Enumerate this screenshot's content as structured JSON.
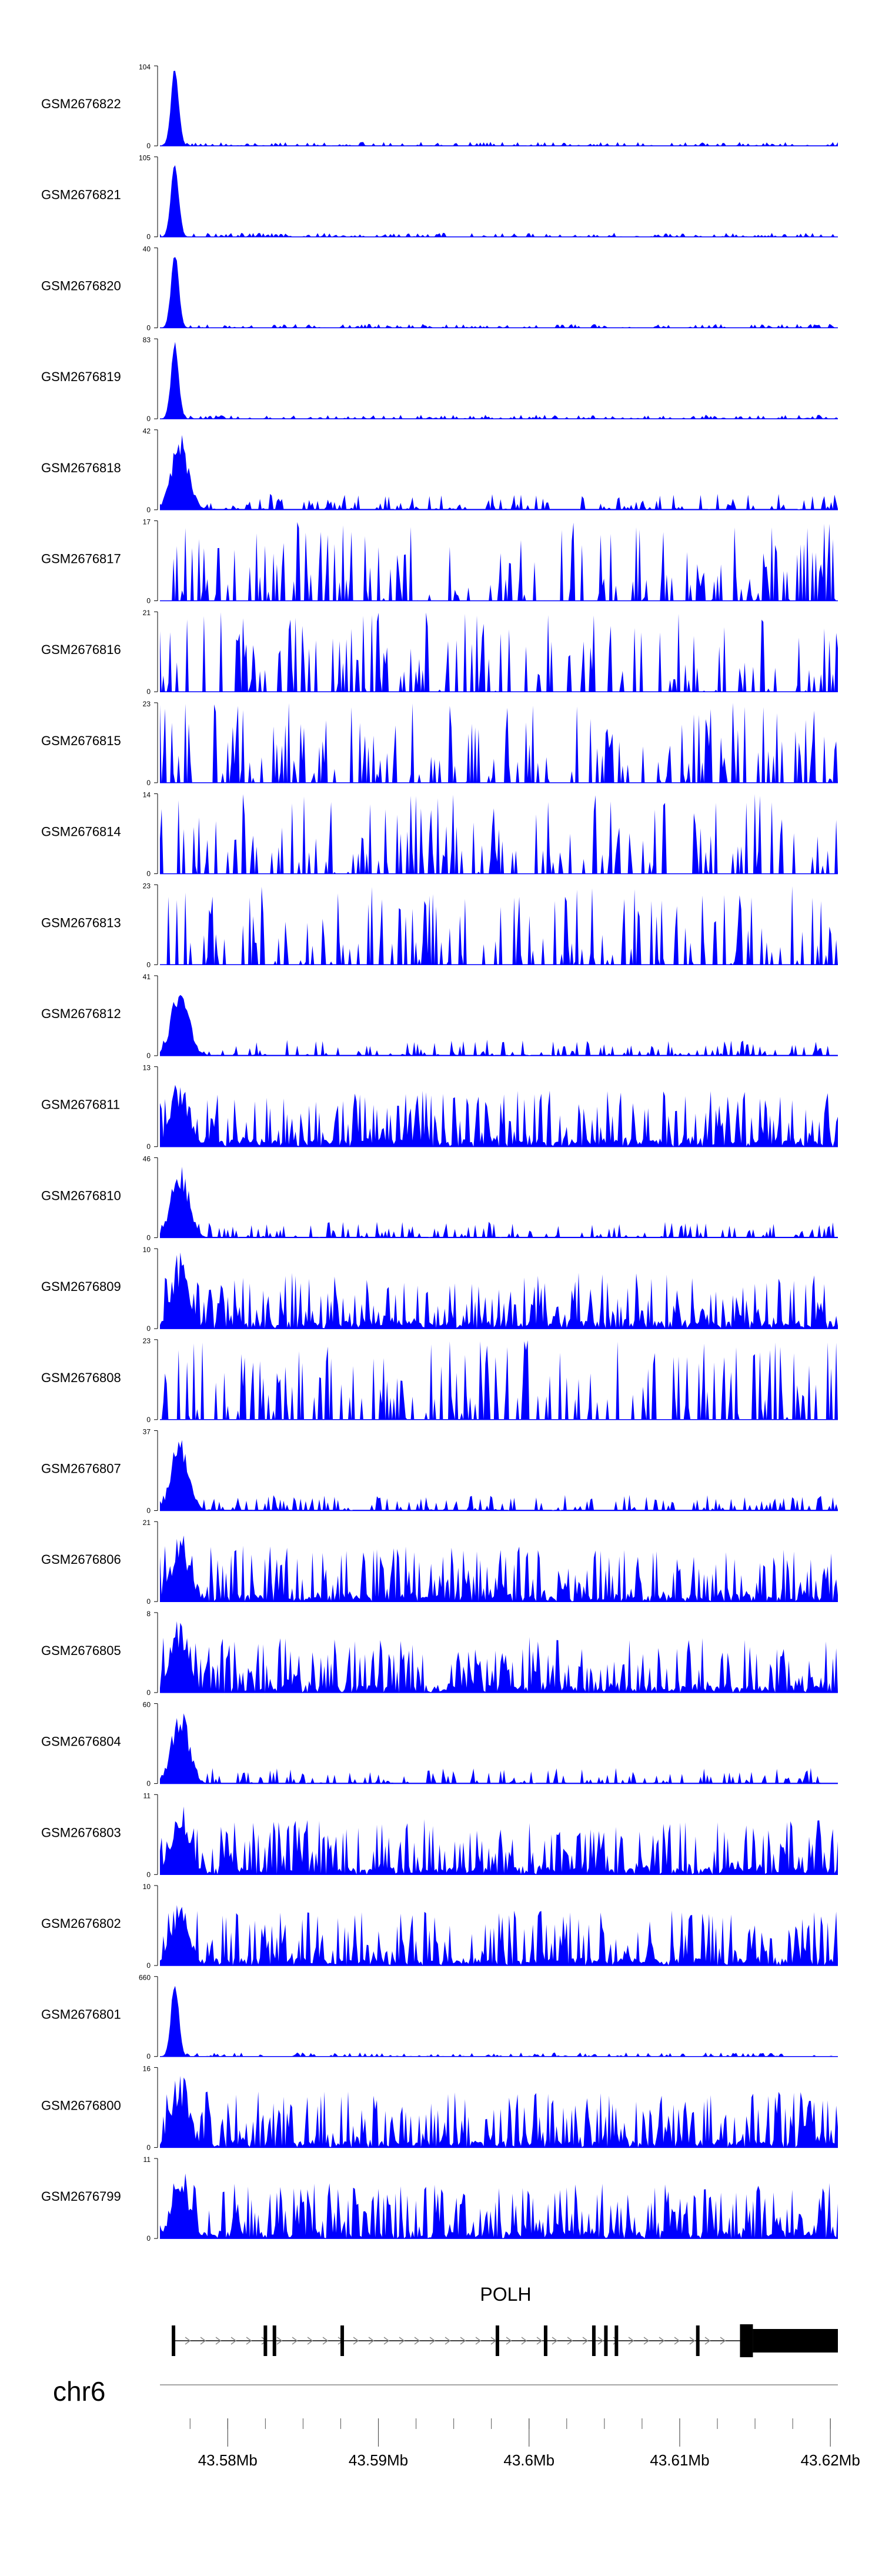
{
  "chart_data": {
    "type": "area",
    "title": "",
    "xlabel": "",
    "colors": {
      "signal": "#0000ff",
      "gene": "#000000",
      "axis": "#000000",
      "baseline": "#888888"
    },
    "region": {
      "chromosome": "chr6",
      "start_mb": 43.5755,
      "end_mb": 43.6205
    },
    "tracks": [
      {
        "name": "GSM2676822",
        "ymax": "104",
        "ymin": "0",
        "max": 104,
        "profile": "early"
      },
      {
        "name": "GSM2676821",
        "ymax": "105",
        "ymin": "0",
        "max": 105,
        "profile": "early"
      },
      {
        "name": "GSM2676820",
        "ymax": "40",
        "ymin": "0",
        "max": 40,
        "profile": "early"
      },
      {
        "name": "GSM2676819",
        "ymax": "83",
        "ymin": "0",
        "max": 83,
        "profile": "early"
      },
      {
        "name": "GSM2676818",
        "ymax": "42",
        "ymin": "0",
        "max": 42,
        "profile": "earlymid"
      },
      {
        "name": "GSM2676817",
        "ymax": "17",
        "ymin": "0",
        "max": 17,
        "profile": "spiky"
      },
      {
        "name": "GSM2676816",
        "ymax": "21",
        "ymin": "0",
        "max": 21,
        "profile": "spiky"
      },
      {
        "name": "GSM2676815",
        "ymax": "23",
        "ymin": "0",
        "max": 23,
        "profile": "spiky"
      },
      {
        "name": "GSM2676814",
        "ymax": "14",
        "ymin": "0",
        "max": 14,
        "profile": "spiky"
      },
      {
        "name": "GSM2676813",
        "ymax": "23",
        "ymin": "0",
        "max": 23,
        "profile": "spiky"
      },
      {
        "name": "GSM2676812",
        "ymax": "41",
        "ymin": "0",
        "max": 41,
        "profile": "earlymid"
      },
      {
        "name": "GSM2676811",
        "ymax": "13",
        "ymin": "0",
        "max": 13,
        "profile": "dense"
      },
      {
        "name": "GSM2676810",
        "ymax": "46",
        "ymin": "0",
        "max": 46,
        "profile": "earlymid"
      },
      {
        "name": "GSM2676809",
        "ymax": "10",
        "ymin": "0",
        "max": 10,
        "profile": "dense"
      },
      {
        "name": "GSM2676808",
        "ymax": "23",
        "ymin": "0",
        "max": 23,
        "profile": "spiky"
      },
      {
        "name": "GSM2676807",
        "ymax": "37",
        "ymin": "0",
        "max": 37,
        "profile": "earlymid"
      },
      {
        "name": "GSM2676806",
        "ymax": "21",
        "ymin": "0",
        "max": 21,
        "profile": "dense"
      },
      {
        "name": "GSM2676805",
        "ymax": "8",
        "ymin": "0",
        "max": 8,
        "profile": "dense"
      },
      {
        "name": "GSM2676804",
        "ymax": "60",
        "ymin": "0",
        "max": 60,
        "profile": "earlymid"
      },
      {
        "name": "GSM2676803",
        "ymax": "11",
        "ymin": "0",
        "max": 11,
        "profile": "dense"
      },
      {
        "name": "GSM2676802",
        "ymax": "10",
        "ymin": "0",
        "max": 10,
        "profile": "dense"
      },
      {
        "name": "GSM2676801",
        "ymax": "660",
        "ymin": "0",
        "max": 660,
        "profile": "early"
      },
      {
        "name": "GSM2676800",
        "ymax": "16",
        "ymin": "0",
        "max": 16,
        "profile": "dense"
      },
      {
        "name": "GSM2676799",
        "ymax": "11",
        "ymin": "0",
        "max": 11,
        "profile": "dense"
      }
    ],
    "gene": {
      "name": "POLH",
      "strand": "+",
      "start_mb": 43.5764,
      "end_mb": 43.6205,
      "exons_mb": [
        43.5764,
        43.5825,
        43.5831,
        43.5876,
        43.5979,
        43.6011,
        43.6043,
        43.6051,
        43.6058,
        43.6112
      ],
      "utr_start_mb": 43.614,
      "utr_end_mb": 43.6205
    },
    "axis": {
      "ticks": [
        {
          "value": 43.58,
          "label": "43.58Mb"
        },
        {
          "value": 43.59,
          "label": "43.59Mb"
        },
        {
          "value": 43.6,
          "label": "43.6Mb"
        },
        {
          "value": 43.61,
          "label": "43.61Mb"
        },
        {
          "value": 43.62,
          "label": "43.62Mb"
        }
      ],
      "minor_step_mb": 0.0025
    }
  }
}
